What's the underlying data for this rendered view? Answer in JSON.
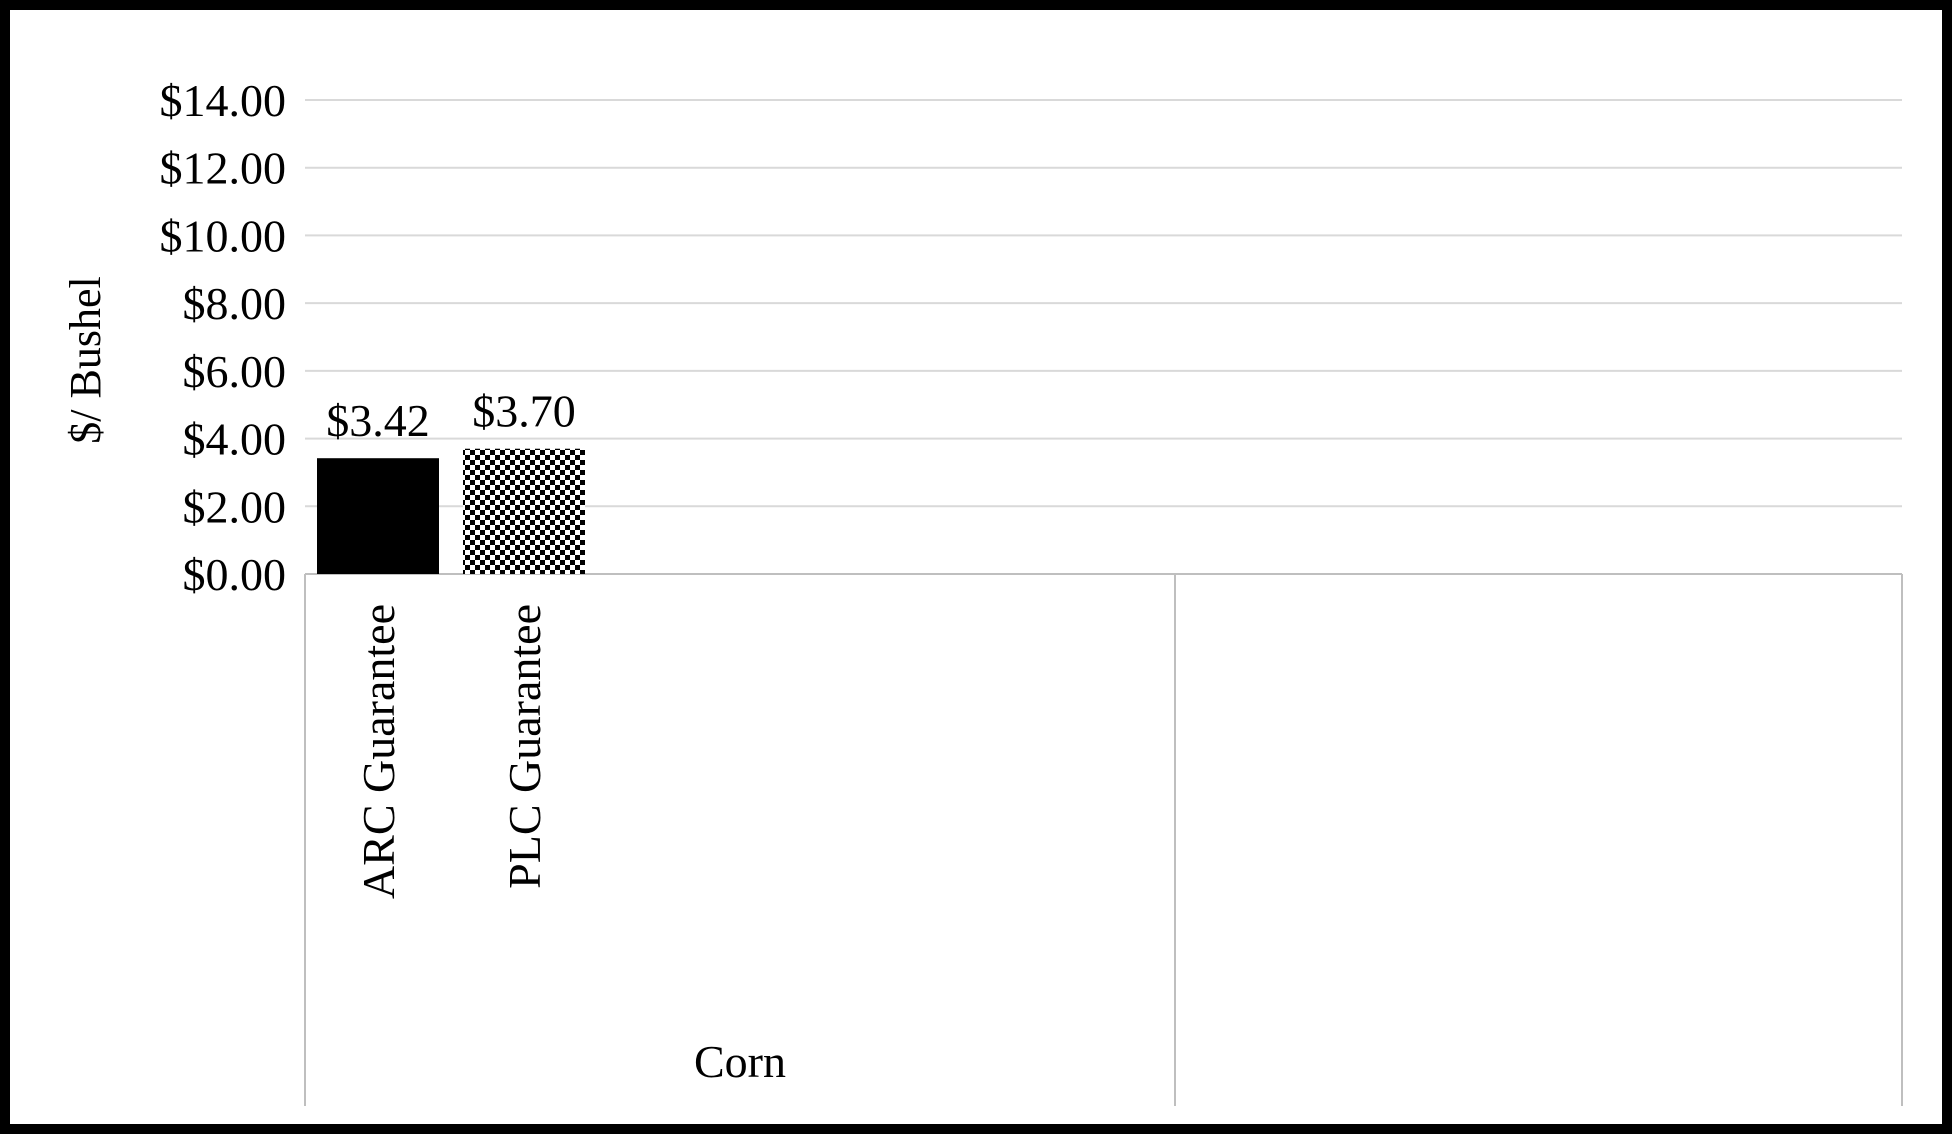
{
  "chart_data": {
    "type": "bar",
    "title": "",
    "xlabel": "",
    "ylabel": "$/ Bushel",
    "ylim": [
      0,
      14
    ],
    "yticks": [
      0,
      2,
      4,
      6,
      8,
      10,
      12,
      14
    ],
    "ytick_labels": [
      "$0.00",
      "$2.00",
      "$4.00",
      "$6.00",
      "$8.00",
      "$10.00",
      "$12.00",
      "$14.00"
    ],
    "grid": true,
    "legend": "none",
    "groups": [
      {
        "name": "Corn",
        "bars": [
          {
            "label_lines": [
              "ARC Guarantee"
            ],
            "value": 3.42,
            "value_label": "$3.42",
            "color": "#000000",
            "pattern": "solid"
          },
          {
            "label_lines": [
              "PLC Guarantee"
            ],
            "value": 3.7,
            "value_label": "$3.70",
            "color": "#000000",
            "pattern": "checker"
          }
        ]
      }
    ]
  },
  "colors": {
    "corn": "#000000",
    "soybean": "#FFC000",
    "grid": "#d9d9d9",
    "axis": "#bfbfbf"
  }
}
